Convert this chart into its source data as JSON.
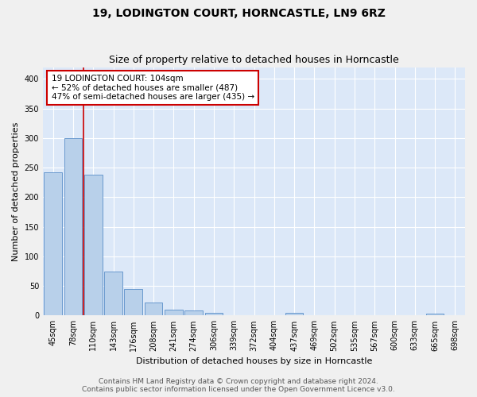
{
  "title": "19, LODINGTON COURT, HORNCASTLE, LN9 6RZ",
  "subtitle": "Size of property relative to detached houses in Horncastle",
  "xlabel": "Distribution of detached houses by size in Horncastle",
  "ylabel": "Number of detached properties",
  "bar_labels": [
    "45sqm",
    "78sqm",
    "110sqm",
    "143sqm",
    "176sqm",
    "208sqm",
    "241sqm",
    "274sqm",
    "306sqm",
    "339sqm",
    "372sqm",
    "404sqm",
    "437sqm",
    "469sqm",
    "502sqm",
    "535sqm",
    "567sqm",
    "600sqm",
    "633sqm",
    "665sqm",
    "698sqm"
  ],
  "bar_values": [
    242,
    300,
    238,
    75,
    45,
    22,
    10,
    9,
    5,
    0,
    0,
    0,
    4,
    0,
    0,
    0,
    0,
    0,
    0,
    3,
    0
  ],
  "bar_color": "#b8d0ea",
  "bar_edge_color": "#5b8fc9",
  "bg_color": "#dce8f8",
  "grid_color": "#ffffff",
  "vline_color": "#cc0000",
  "annotation_text": "19 LODINGTON COURT: 104sqm\n← 52% of detached houses are smaller (487)\n47% of semi-detached houses are larger (435) →",
  "annotation_box_color": "#ffffff",
  "annotation_box_edge": "#cc0000",
  "footer_line1": "Contains HM Land Registry data © Crown copyright and database right 2024.",
  "footer_line2": "Contains public sector information licensed under the Open Government Licence v3.0.",
  "fig_bg_color": "#f0f0f0",
  "ylim": [
    0,
    420
  ],
  "yticks": [
    0,
    50,
    100,
    150,
    200,
    250,
    300,
    350,
    400
  ],
  "title_fontsize": 10,
  "subtitle_fontsize": 9,
  "axis_label_fontsize": 8,
  "tick_fontsize": 7,
  "annotation_fontsize": 7.5,
  "footer_fontsize": 6.5
}
